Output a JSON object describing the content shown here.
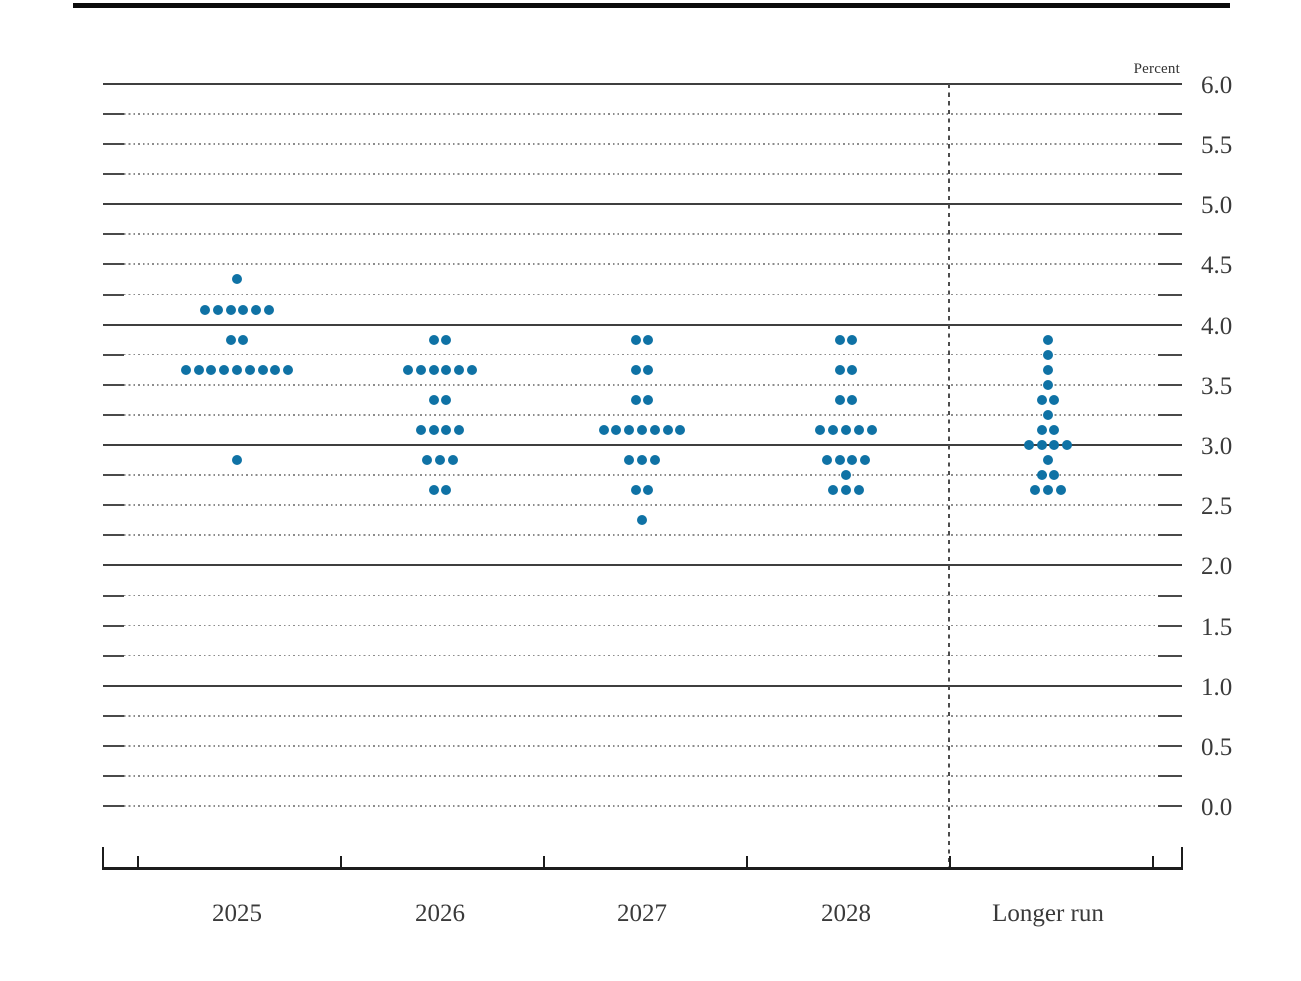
{
  "chart_data": {
    "type": "scatter",
    "subtype": "dot-plot",
    "y_axis": {
      "unit_label": "Percent",
      "min": 0.0,
      "max": 6.0,
      "grid_step": 0.25,
      "label_step": 0.5,
      "solid_line_values": [
        1.0,
        2.0,
        3.0,
        4.0,
        5.0,
        6.0
      ],
      "ticks": [
        {
          "value": 6.0,
          "label": "6.0"
        },
        {
          "value": 5.5,
          "label": "5.5"
        },
        {
          "value": 5.0,
          "label": "5.0"
        },
        {
          "value": 4.5,
          "label": "4.5"
        },
        {
          "value": 4.0,
          "label": "4.0"
        },
        {
          "value": 3.5,
          "label": "3.5"
        },
        {
          "value": 3.0,
          "label": "3.0"
        },
        {
          "value": 2.5,
          "label": "2.5"
        },
        {
          "value": 2.0,
          "label": "2.0"
        },
        {
          "value": 1.5,
          "label": "1.5"
        },
        {
          "value": 1.0,
          "label": "1.0"
        },
        {
          "value": 0.5,
          "label": "0.5"
        },
        {
          "value": 0.0,
          "label": "0.0"
        }
      ]
    },
    "x_axis": {
      "categories": [
        "2025",
        "2026",
        "2027",
        "2028",
        "Longer run"
      ],
      "divider_before_category": "Longer run"
    },
    "columns": [
      {
        "label": "2025",
        "dots": [
          {
            "rate": 4.375,
            "count": 1
          },
          {
            "rate": 4.125,
            "count": 6
          },
          {
            "rate": 3.875,
            "count": 2
          },
          {
            "rate": 3.625,
            "count": 9
          },
          {
            "rate": 2.875,
            "count": 1
          }
        ]
      },
      {
        "label": "2026",
        "dots": [
          {
            "rate": 3.875,
            "count": 2
          },
          {
            "rate": 3.625,
            "count": 6
          },
          {
            "rate": 3.375,
            "count": 2
          },
          {
            "rate": 3.125,
            "count": 4
          },
          {
            "rate": 2.875,
            "count": 3
          },
          {
            "rate": 2.625,
            "count": 2
          }
        ]
      },
      {
        "label": "2027",
        "dots": [
          {
            "rate": 3.875,
            "count": 2
          },
          {
            "rate": 3.625,
            "count": 2
          },
          {
            "rate": 3.375,
            "count": 2
          },
          {
            "rate": 3.125,
            "count": 7
          },
          {
            "rate": 2.875,
            "count": 3
          },
          {
            "rate": 2.625,
            "count": 2
          },
          {
            "rate": 2.375,
            "count": 1
          }
        ]
      },
      {
        "label": "2028",
        "dots": [
          {
            "rate": 3.875,
            "count": 2
          },
          {
            "rate": 3.625,
            "count": 2
          },
          {
            "rate": 3.375,
            "count": 2
          },
          {
            "rate": 3.125,
            "count": 5
          },
          {
            "rate": 2.875,
            "count": 4
          },
          {
            "rate": 2.75,
            "count": 1
          },
          {
            "rate": 2.625,
            "count": 3
          }
        ]
      },
      {
        "label": "Longer run",
        "dots": [
          {
            "rate": 3.875,
            "count": 1
          },
          {
            "rate": 3.75,
            "count": 1
          },
          {
            "rate": 3.625,
            "count": 1
          },
          {
            "rate": 3.5,
            "count": 1
          },
          {
            "rate": 3.375,
            "count": 2
          },
          {
            "rate": 3.25,
            "count": 1
          },
          {
            "rate": 3.125,
            "count": 2
          },
          {
            "rate": 3.0,
            "count": 4
          },
          {
            "rate": 2.875,
            "count": 1
          },
          {
            "rate": 2.75,
            "count": 2
          },
          {
            "rate": 2.625,
            "count": 3
          }
        ]
      }
    ],
    "colors": {
      "dot": "#0f72a5",
      "solid_gridline": "#3f3f3f",
      "dotted_gridline": "#8c8c8c",
      "axis": "#1c1c1c"
    }
  }
}
